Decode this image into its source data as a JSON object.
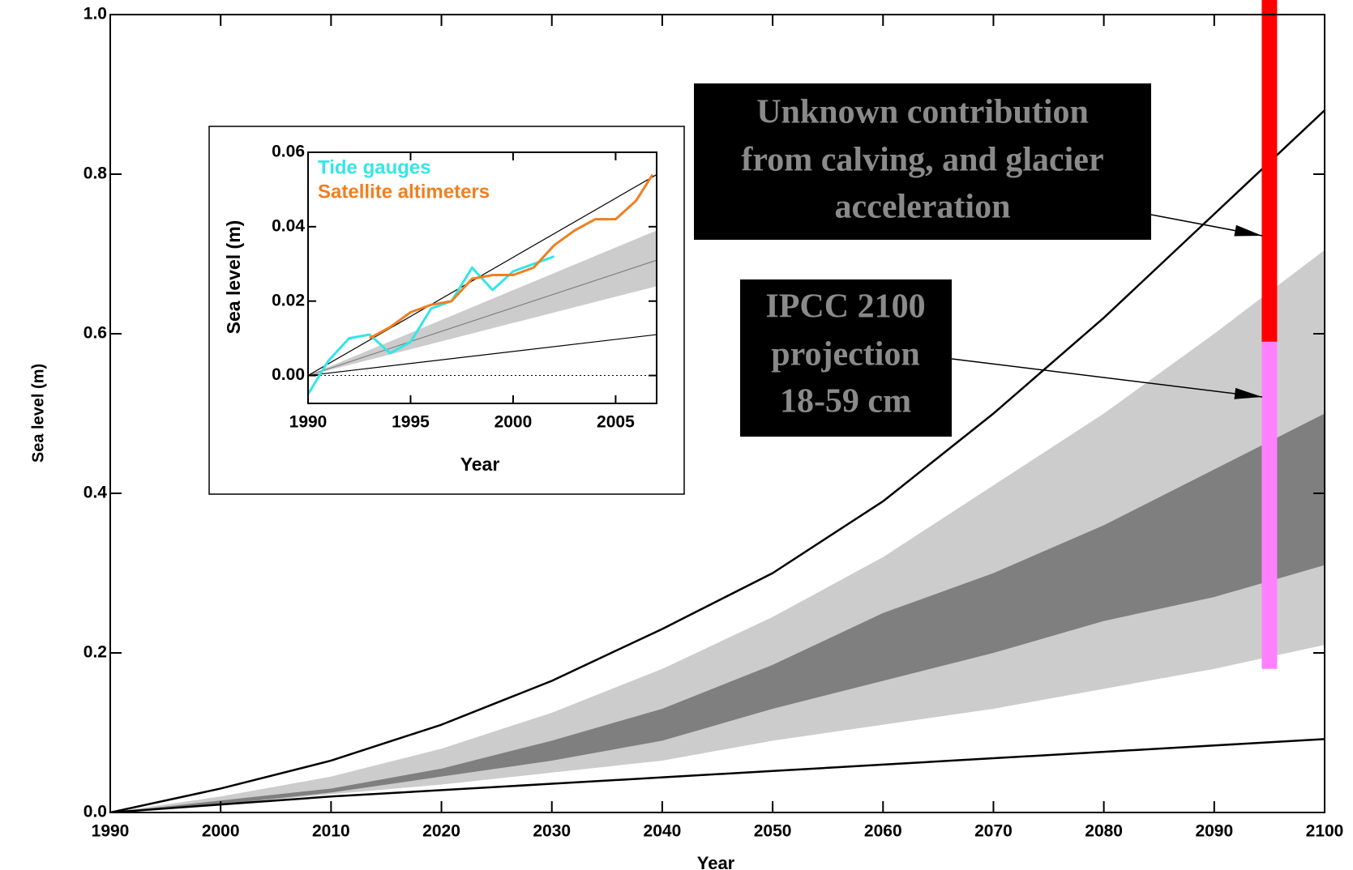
{
  "chart_data": [
    {
      "type": "line",
      "x_label": "Year",
      "y_label": "Sea level (m)",
      "xlim": [
        1990,
        2100
      ],
      "ylim": [
        0,
        1.0
      ],
      "xticks": [
        1990,
        2000,
        2010,
        2020,
        2030,
        2040,
        2050,
        2060,
        2070,
        2080,
        2090,
        2100
      ],
      "yticks": [
        {
          "value": 0,
          "label": "0.0"
        },
        {
          "value": 0.2,
          "label": "0.2"
        },
        {
          "value": 0.4,
          "label": "0.4"
        },
        {
          "value": 0.6,
          "label": "0.6"
        },
        {
          "value": 0.8,
          "label": "0.8"
        },
        {
          "value": 1.0,
          "label": "1.0"
        }
      ],
      "x": [
        1990,
        2000,
        2010,
        2020,
        2030,
        2040,
        2050,
        2060,
        2070,
        2080,
        2090,
        2100
      ],
      "bands": [
        {
          "color": "#cccccc",
          "lower": [
            0,
            0.01,
            0.023,
            0.035,
            0.05,
            0.065,
            0.09,
            0.11,
            0.13,
            0.155,
            0.18,
            0.21
          ],
          "upper": [
            0,
            0.02,
            0.045,
            0.08,
            0.125,
            0.18,
            0.245,
            0.32,
            0.41,
            0.5,
            0.6,
            0.705
          ]
        },
        {
          "color": "#7f7f7f",
          "lower": [
            0,
            0.01,
            0.025,
            0.045,
            0.065,
            0.09,
            0.13,
            0.165,
            0.2,
            0.24,
            0.27,
            0.31
          ],
          "upper": [
            0,
            0.015,
            0.03,
            0.055,
            0.09,
            0.13,
            0.185,
            0.25,
            0.3,
            0.36,
            0.43,
            0.5
          ]
        }
      ],
      "series": [
        {
          "color": "#000000",
          "values": [
            0,
            0.03,
            0.065,
            0.11,
            0.165,
            0.23,
            0.3,
            0.39,
            0.5,
            0.62,
            0.75,
            0.88
          ]
        },
        {
          "color": "#000000",
          "values": [
            0,
            0.01,
            0.02,
            0.028,
            0.036,
            0.044,
            0.052,
            0.06,
            0.068,
            0.076,
            0.084,
            0.092
          ]
        }
      ],
      "ranges": [
        {
          "color": "#ff80ff",
          "x": 2095,
          "low": 0.18,
          "high": 0.59
        },
        {
          "color": "#ff0000",
          "x": 2095,
          "low": 0.59,
          "high": 1.02
        }
      ],
      "annotations": [
        {
          "lines": [
            "Unknown contribution",
            "from calving, and glacier",
            "acceleration"
          ]
        },
        {
          "lines": [
            "IPCC 2100",
            "projection",
            "18-59 cm"
          ]
        }
      ]
    },
    {
      "type": "line",
      "x_label": "Year",
      "y_label": "Sea level (m)",
      "xlim": [
        1990,
        2007
      ],
      "ylim": [
        -0.0075,
        0.06
      ],
      "xticks": [
        1990,
        1995,
        2000,
        2005
      ],
      "yticks": [
        {
          "value": 0,
          "label": "0.00"
        },
        {
          "value": 0.02,
          "label": "0.02"
        },
        {
          "value": 0.04,
          "label": "0.04"
        },
        {
          "value": 0.06,
          "label": "0.06"
        }
      ],
      "zero_line": true,
      "x": [
        1990,
        2007
      ],
      "bands": [
        {
          "color": "#cccccc",
          "lower": [
            0,
            0.024
          ],
          "upper": [
            0,
            0.039
          ]
        }
      ],
      "series": [
        {
          "color": "#808080",
          "x": [
            1990,
            2007
          ],
          "values": [
            0,
            0.031
          ]
        },
        {
          "color": "#000000",
          "x": [
            1990,
            2007
          ],
          "values": [
            0,
            0.054
          ]
        },
        {
          "color": "#000000",
          "x": [
            1990,
            2007
          ],
          "values": [
            0,
            0.011
          ]
        },
        {
          "name": "Tide gauges",
          "color": "#33e6e6",
          "x": [
            1990,
            1991,
            1992,
            1993,
            1994,
            1995,
            1996,
            1997,
            1998,
            1999,
            2000,
            2001,
            2002
          ],
          "values": [
            -0.005,
            0.004,
            0.01,
            0.011,
            0.006,
            0.009,
            0.018,
            0.02,
            0.029,
            0.023,
            0.028,
            0.03,
            0.032
          ]
        },
        {
          "name": "Satellite altimeters",
          "color": "#f07f1f",
          "x": [
            1993,
            1994,
            1995,
            1996,
            1997,
            1998,
            1999,
            2000,
            2001,
            2002,
            2003,
            2004,
            2005,
            2006,
            2006.8
          ],
          "values": [
            0.01,
            0.013,
            0.017,
            0.019,
            0.02,
            0.026,
            0.027,
            0.027,
            0.029,
            0.035,
            0.039,
            0.042,
            0.042,
            0.047,
            0.054
          ]
        }
      ]
    }
  ]
}
